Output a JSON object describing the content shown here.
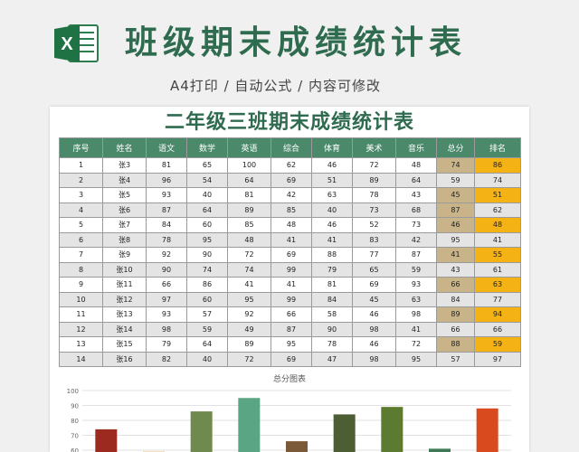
{
  "header": {
    "logo_letter": "X",
    "title": "班级期末成绩统计表",
    "subtitle": "A4打印 / 自动公式 / 内容可修改"
  },
  "sheet": {
    "title": "二年级三班期末成绩统计表",
    "columns": [
      "序号",
      "姓名",
      "语文",
      "数学",
      "英语",
      "综合",
      "体育",
      "美术",
      "音乐",
      "总分",
      "排名"
    ],
    "rows": [
      [
        "1",
        "张3",
        "81",
        "65",
        "100",
        "62",
        "46",
        "72",
        "48",
        "74",
        "86"
      ],
      [
        "2",
        "张4",
        "96",
        "54",
        "64",
        "69",
        "51",
        "89",
        "64",
        "59",
        "74"
      ],
      [
        "3",
        "张5",
        "93",
        "40",
        "81",
        "42",
        "63",
        "78",
        "43",
        "45",
        "51"
      ],
      [
        "4",
        "张6",
        "87",
        "64",
        "89",
        "85",
        "40",
        "73",
        "68",
        "87",
        "62"
      ],
      [
        "5",
        "张7",
        "84",
        "60",
        "85",
        "48",
        "46",
        "52",
        "73",
        "46",
        "48"
      ],
      [
        "6",
        "张8",
        "78",
        "95",
        "48",
        "41",
        "41",
        "83",
        "42",
        "95",
        "41"
      ],
      [
        "7",
        "张9",
        "92",
        "90",
        "72",
        "69",
        "88",
        "77",
        "87",
        "41",
        "55"
      ],
      [
        "8",
        "张10",
        "90",
        "74",
        "74",
        "99",
        "79",
        "65",
        "59",
        "43",
        "61"
      ],
      [
        "9",
        "张11",
        "66",
        "86",
        "41",
        "41",
        "81",
        "69",
        "93",
        "66",
        "63"
      ],
      [
        "10",
        "张12",
        "97",
        "60",
        "95",
        "99",
        "84",
        "45",
        "63",
        "84",
        "77"
      ],
      [
        "11",
        "张13",
        "93",
        "57",
        "92",
        "66",
        "58",
        "46",
        "98",
        "89",
        "94"
      ],
      [
        "12",
        "张14",
        "98",
        "59",
        "49",
        "87",
        "90",
        "98",
        "41",
        "66",
        "66"
      ],
      [
        "13",
        "张15",
        "79",
        "64",
        "89",
        "95",
        "78",
        "46",
        "72",
        "88",
        "59"
      ],
      [
        "14",
        "张16",
        "82",
        "40",
        "72",
        "69",
        "47",
        "98",
        "95",
        "57",
        "97"
      ]
    ],
    "highlight_total_rows": [
      0,
      2,
      3,
      4,
      6,
      8,
      10,
      12
    ],
    "highlight_rank_rows": [
      0,
      2,
      4,
      6,
      8,
      10,
      12
    ]
  },
  "chart_data": {
    "type": "bar",
    "title": "总分图表",
    "ylim": [
      60,
      100
    ],
    "yticks": [
      100,
      90,
      80,
      70,
      60
    ],
    "values": [
      74,
      59,
      86,
      95,
      66,
      84,
      89,
      61,
      88
    ],
    "colors": [
      "#9c2a1f",
      "#d9a23c",
      "#6e8a4e",
      "#5aa584",
      "#7a5a38",
      "#4e5e34",
      "#5c7a30",
      "#3e7a55",
      "#d94a1f"
    ]
  }
}
